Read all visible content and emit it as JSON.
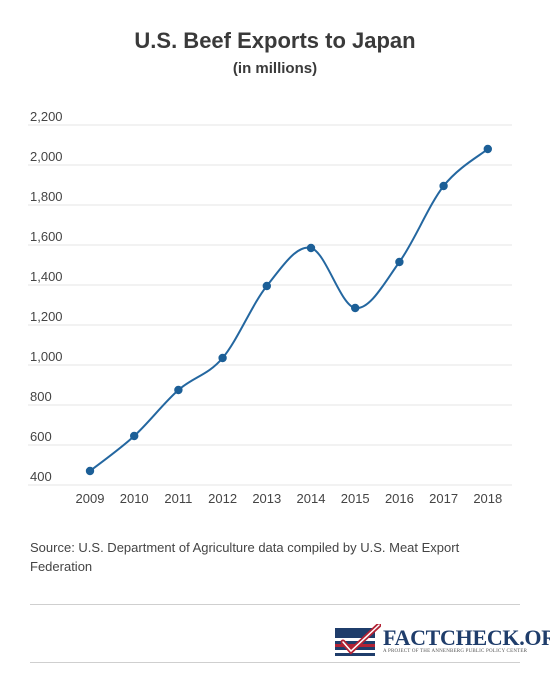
{
  "chart_data": {
    "type": "line",
    "title": "U.S. Beef Exports to Japan",
    "subtitle": "(in millions)",
    "x": [
      "2009",
      "2010",
      "2011",
      "2012",
      "2013",
      "2014",
      "2015",
      "2016",
      "2017",
      "2018"
    ],
    "series": [
      {
        "values": [
          470,
          645,
          875,
          1035,
          1395,
          1585,
          1285,
          1515,
          1895,
          2080
        ]
      }
    ],
    "yticks": [
      400,
      600,
      800,
      1000,
      1200,
      1400,
      1600,
      1800,
      2000,
      2200
    ],
    "ytick_labels": [
      "400",
      "600",
      "800",
      "1,000",
      "1,200",
      "1,400",
      "1,600",
      "1,800",
      "2,000",
      "2,200"
    ],
    "ylim": [
      400,
      2200
    ],
    "grid": true,
    "line_color": "#2467a0",
    "marker_color": "#1c5f97",
    "grid_color": "#e6e6e6"
  },
  "source_text": "Source: U.S. Department of Agriculture data compiled by U.S. Meat Export Federation",
  "logo": {
    "name": "FACTCHECK.ORG",
    "tagline": "A PROJECT OF THE ANNENBERG PUBLIC POLICY CENTER"
  }
}
